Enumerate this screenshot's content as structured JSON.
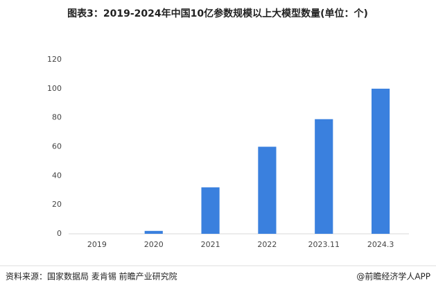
{
  "chart_data": {
    "type": "bar",
    "title": "图表3：2019-2024年中国10亿参数规模以上大模型数量(单位：个)",
    "categories": [
      "2019",
      "2020",
      "2021",
      "2022",
      "2023.11",
      "2024.3"
    ],
    "values": [
      0,
      2,
      32,
      60,
      79,
      100
    ],
    "color": "#3a80de",
    "ylim": [
      0,
      120
    ],
    "yticks": [
      0,
      20,
      40,
      60,
      80,
      100,
      120
    ],
    "grid": false,
    "source": "资料来源：国家数据局 麦肯锡 前瞻产业研究院",
    "credit": "@前瞻经济学人APP"
  }
}
